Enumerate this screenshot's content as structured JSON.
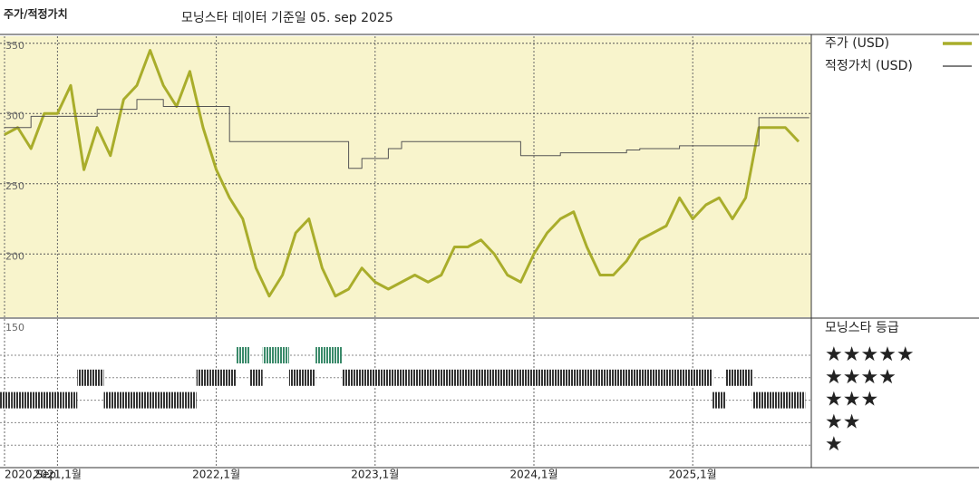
{
  "chart_data": {
    "type": "line",
    "section_title": "주가/적정가치",
    "title": "모닝스타 데이터 기준일 05. sep 2025",
    "x": [
      "2020-09",
      "2020-10",
      "2020-11",
      "2020-12",
      "2021-01",
      "2021-02",
      "2021-03",
      "2021-04",
      "2021-05",
      "2021-06",
      "2021-07",
      "2021-08",
      "2021-09",
      "2021-10",
      "2021-11",
      "2021-12",
      "2022-01",
      "2022-02",
      "2022-03",
      "2022-04",
      "2022-05",
      "2022-06",
      "2022-07",
      "2022-08",
      "2022-09",
      "2022-10",
      "2022-11",
      "2022-12",
      "2023-01",
      "2023-02",
      "2023-03",
      "2023-04",
      "2023-05",
      "2023-06",
      "2023-07",
      "2023-08",
      "2023-09",
      "2023-10",
      "2023-11",
      "2023-12",
      "2024-01",
      "2024-02",
      "2024-03",
      "2024-04",
      "2024-05",
      "2024-06",
      "2024-07",
      "2024-08",
      "2024-09",
      "2024-10",
      "2024-11",
      "2024-12",
      "2025-01",
      "2025-02",
      "2025-03",
      "2025-04",
      "2025-05",
      "2025-06",
      "2025-07",
      "2025-08",
      "2025-09"
    ],
    "series": [
      {
        "name": "주가 (USD)",
        "color": "#a9ad2b",
        "width": 3,
        "values": [
          285,
          290,
          275,
          300,
          300,
          320,
          260,
          290,
          270,
          310,
          320,
          345,
          320,
          305,
          330,
          290,
          260,
          240,
          225,
          190,
          170,
          185,
          215,
          225,
          190,
          170,
          175,
          190,
          180,
          175,
          180,
          185,
          180,
          185,
          205,
          205,
          210,
          200,
          185,
          180,
          200,
          215,
          225,
          230,
          205,
          185,
          185,
          195,
          210,
          215,
          220,
          240,
          225,
          235,
          240,
          225,
          240,
          290,
          290,
          290,
          280
        ]
      },
      {
        "name": "적정가치 (USD)",
        "color": "#555555",
        "width": 1,
        "step": true,
        "values": [
          290,
          290,
          298,
          298,
          298,
          298,
          298,
          303,
          303,
          303,
          310,
          310,
          305,
          305,
          305,
          305,
          305,
          280,
          280,
          280,
          280,
          280,
          280,
          280,
          280,
          280,
          261,
          268,
          268,
          275,
          280,
          280,
          280,
          280,
          280,
          280,
          280,
          280,
          280,
          270,
          270,
          270,
          272,
          272,
          272,
          272,
          272,
          274,
          275,
          275,
          275,
          277,
          277,
          277,
          277,
          277,
          277,
          297,
          297,
          297,
          297
        ]
      }
    ],
    "ylim": [
      155,
      355
    ],
    "yticks": [
      200,
      250,
      300,
      350
    ],
    "grid": true,
    "xticks": [
      {
        "value": "2020-09",
        "label": "2020,Sep"
      },
      {
        "value": "2021-01",
        "label": "2021,1월"
      },
      {
        "value": "2022-01",
        "label": "2022,1월"
      },
      {
        "value": "2023-01",
        "label": "2023,1월"
      },
      {
        "value": "2024-01",
        "label": "2024,1월"
      },
      {
        "value": "2025-01",
        "label": "2025,1월"
      }
    ],
    "background": "#f8f4cc",
    "ratings": {
      "title": "모닝스타 등급",
      "axis_label": "150",
      "labels": [
        "★★★★★",
        "★★★★",
        "★★★",
        "★★",
        "★"
      ],
      "colors": {
        "5": "#3a8a6a",
        "4": "#333333",
        "3": "#333333"
      },
      "values": [
        3,
        3,
        3,
        3,
        3,
        3,
        4,
        4,
        3,
        3,
        3,
        3,
        3,
        3,
        3,
        4,
        4,
        4,
        5,
        4,
        5,
        5,
        4,
        4,
        5,
        5,
        4,
        4,
        4,
        4,
        4,
        4,
        4,
        4,
        4,
        4,
        4,
        4,
        4,
        4,
        4,
        4,
        4,
        4,
        4,
        4,
        4,
        4,
        4,
        4,
        4,
        4,
        4,
        4,
        3,
        4,
        4,
        3,
        3,
        3,
        3
      ]
    }
  }
}
